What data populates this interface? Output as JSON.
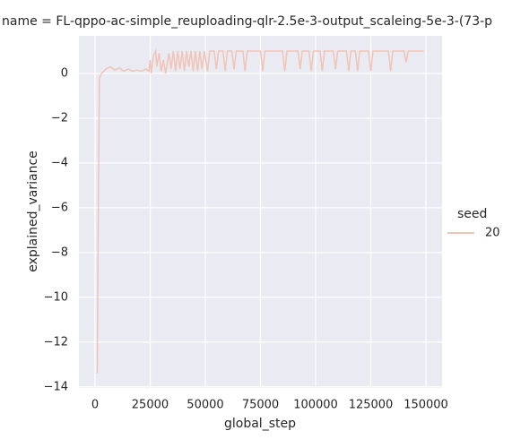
{
  "chart_data": {
    "type": "line",
    "title": "name = FL-qppo-ac-simple_reuploading-qlr-2.5e-3-output_scaleing-5e-3-(73-p",
    "x_label": "global_step",
    "y_label": "explained_variance",
    "legend_title": "seed",
    "legend_position": "right",
    "grid": true,
    "x": [
      1000,
      1500,
      2000,
      3000,
      5000,
      7000,
      9000,
      11000,
      13000,
      15000,
      17000,
      19000,
      21000,
      23000,
      24500,
      25000,
      25500,
      26500,
      27500,
      28000,
      29000,
      30000,
      31000,
      32000,
      33500,
      34500,
      35500,
      36500,
      37500,
      38500,
      39500,
      40500,
      41500,
      42500,
      43500,
      44500,
      45500,
      46500,
      47500,
      48500,
      49500,
      51000,
      52000,
      54000,
      55000,
      56000,
      58000,
      59000,
      60000,
      62000,
      63000,
      64000,
      67000,
      68000,
      69000,
      75000,
      76000,
      77000,
      85000,
      86000,
      87000,
      92000,
      93000,
      94000,
      97000,
      98000,
      99000,
      102000,
      103000,
      104000,
      108000,
      109000,
      110000,
      114000,
      115000,
      116000,
      118000,
      119000,
      120000,
      124000,
      125000,
      126000,
      133000,
      134000,
      135000,
      140000,
      141000,
      142000,
      149000
    ],
    "series": [
      {
        "name": "20",
        "color": "#f0c4b6",
        "values": [
          -13.4,
          -6,
          -0.2,
          0.0,
          0.2,
          0.3,
          0.15,
          0.25,
          0.1,
          0.2,
          0.1,
          0.15,
          0.1,
          0.2,
          0.1,
          0.6,
          0.0,
          0.8,
          1.0,
          0.3,
          0.9,
          0.1,
          0.6,
          0.0,
          0.9,
          0.2,
          1.0,
          0.1,
          1.0,
          0.2,
          1.0,
          0.1,
          1.0,
          0.3,
          1.0,
          0.1,
          1.0,
          0.1,
          1.0,
          0.2,
          1.0,
          0.1,
          1.0,
          1.0,
          0.2,
          1.0,
          1.0,
          0.1,
          1.0,
          1.0,
          0.2,
          1.0,
          1.0,
          0.1,
          1.0,
          1.0,
          0.1,
          1.0,
          1.0,
          0.1,
          1.0,
          1.0,
          0.2,
          1.0,
          1.0,
          0.1,
          1.0,
          1.0,
          0.1,
          1.0,
          1.0,
          0.2,
          1.0,
          1.0,
          0.1,
          1.0,
          1.0,
          0.1,
          1.0,
          1.0,
          0.1,
          1.0,
          1.0,
          0.1,
          1.0,
          1.0,
          0.5,
          1.0,
          1.0
        ]
      }
    ],
    "xlim": [
      -7300,
      157300
    ],
    "ylim": [
      -14.05,
      1.68
    ],
    "xticks": [
      0,
      25000,
      50000,
      75000,
      100000,
      125000,
      150000
    ],
    "yticks": [
      {
        "value": -14,
        "label": "−14"
      },
      {
        "value": -12,
        "label": "−12"
      },
      {
        "value": -10,
        "label": "−10"
      },
      {
        "value": -8,
        "label": "−8"
      },
      {
        "value": -6,
        "label": "−6"
      },
      {
        "value": -4,
        "label": "−4"
      },
      {
        "value": -2,
        "label": "−2"
      },
      0
    ]
  }
}
